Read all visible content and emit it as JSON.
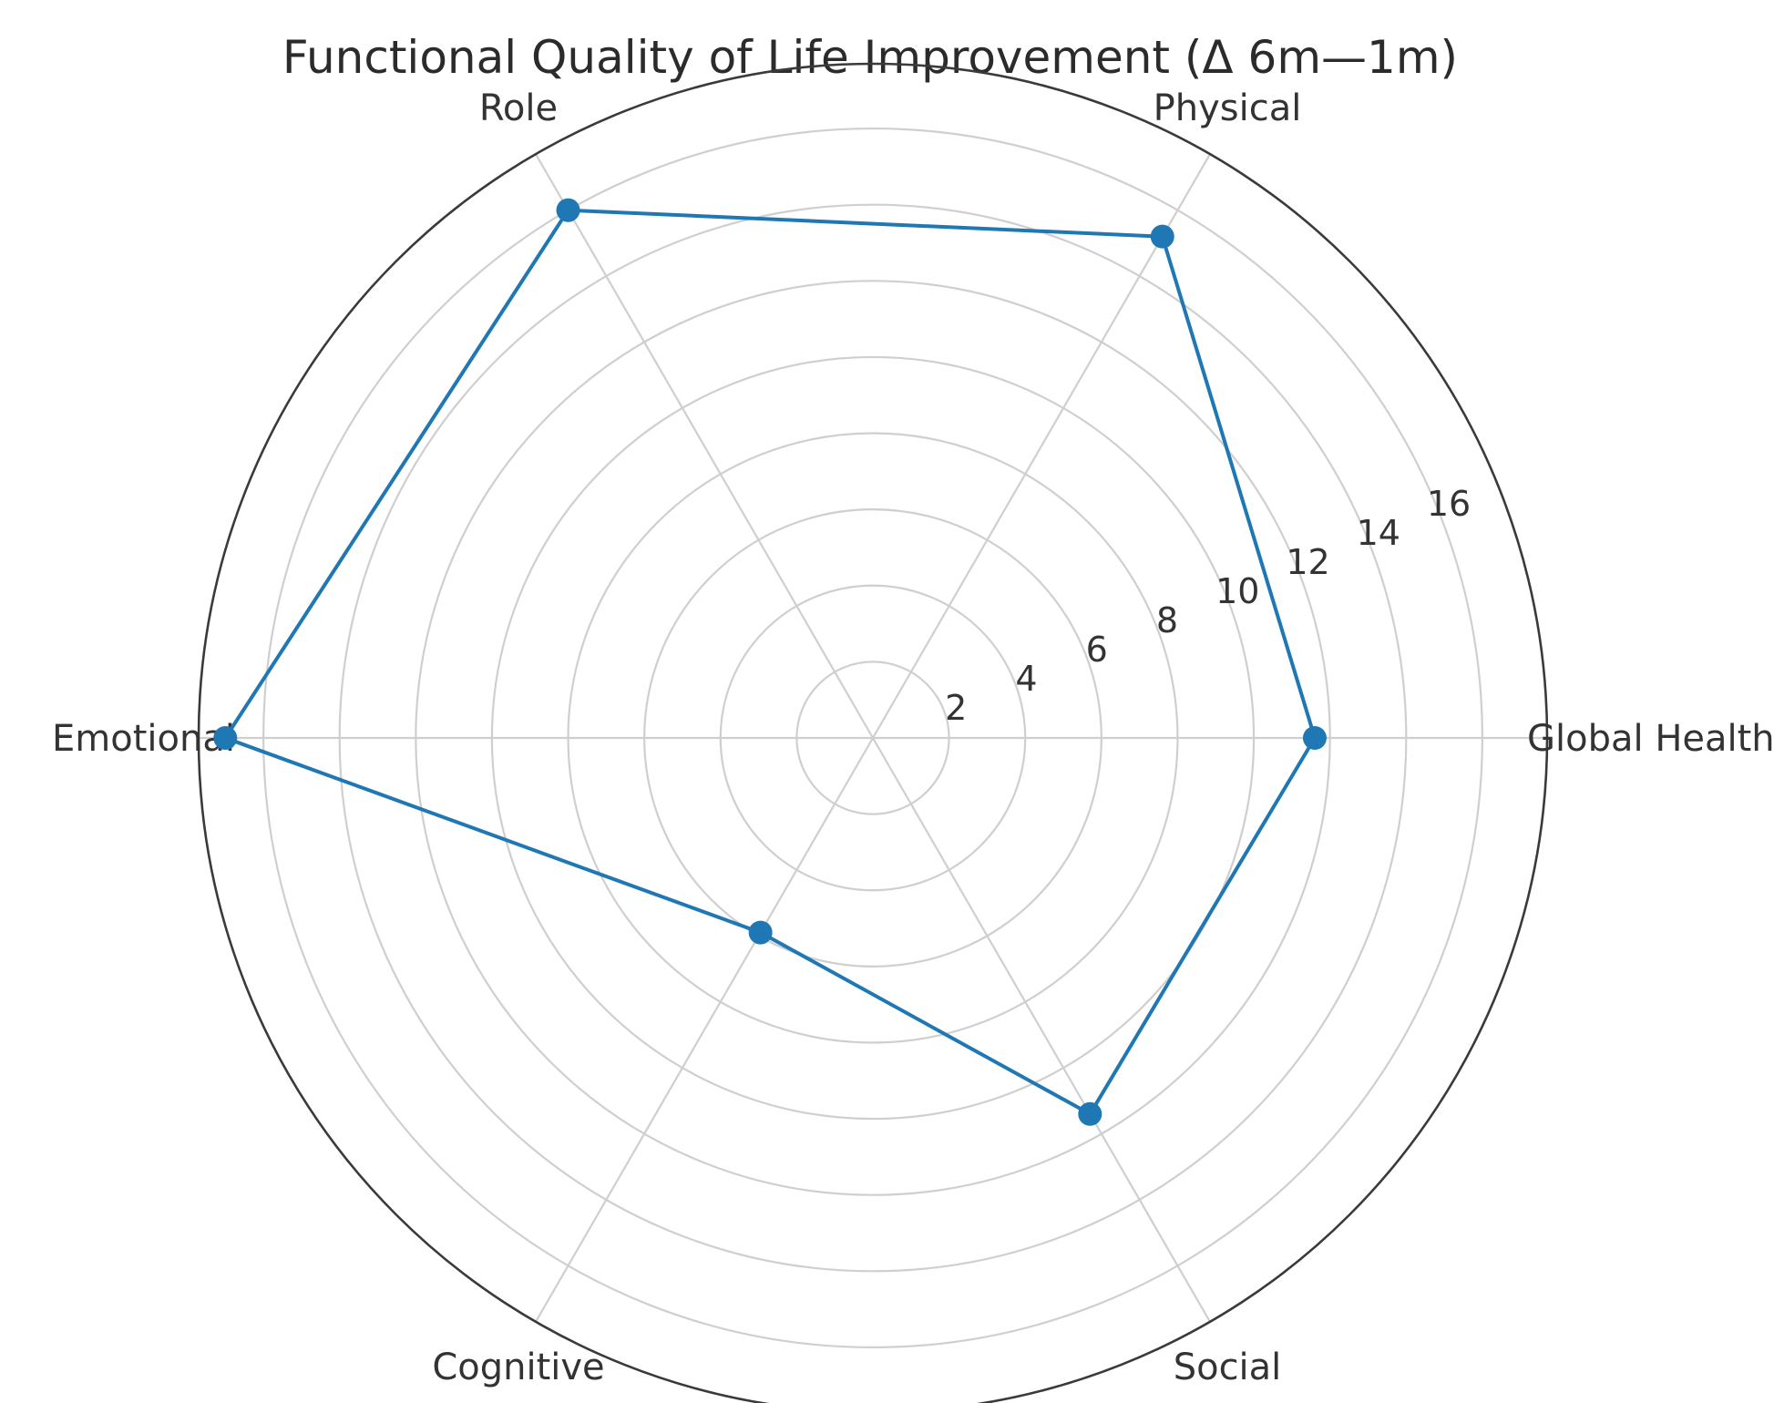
{
  "chart_data": {
    "type": "radar",
    "title": "Functional Quality of Life Improvement (Δ 6m—1m)",
    "categories": [
      "Global Health",
      "Physical",
      "Role",
      "Emotional",
      "Cognitive",
      "Social"
    ],
    "series": [
      {
        "values": [
          11.6,
          15.2,
          16.0,
          17.0,
          5.9,
          11.4
        ],
        "color": "#1f77b4"
      }
    ],
    "r_ticks": [
      2,
      4,
      6,
      8,
      10,
      12,
      14,
      16
    ],
    "r_tick_labels": [
      "2",
      "4",
      "6",
      "8",
      "10",
      "12",
      "14",
      "16"
    ],
    "rlim": [
      0,
      17.7
    ],
    "grid": true
  }
}
